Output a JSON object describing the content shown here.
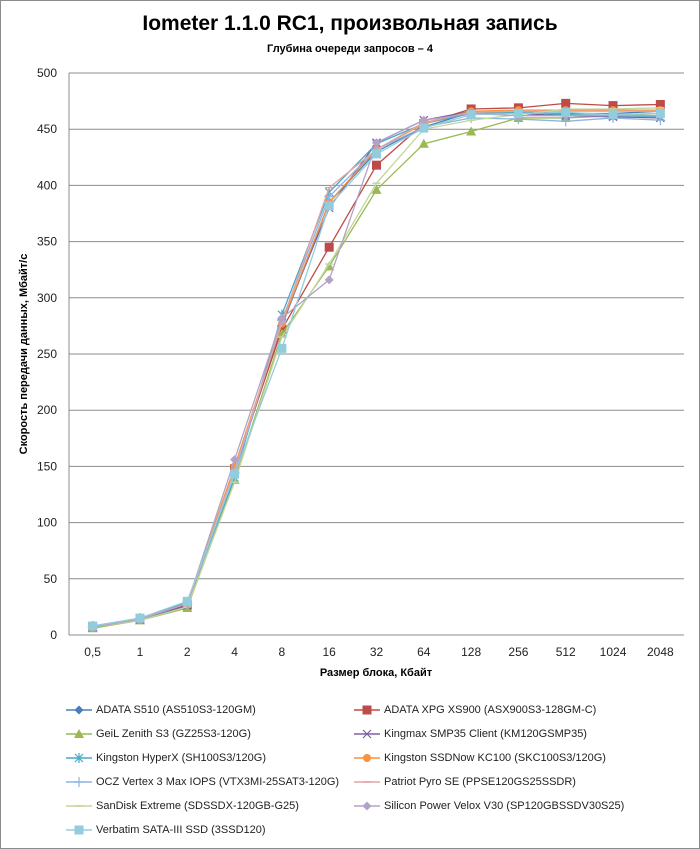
{
  "chart_data": {
    "type": "line",
    "title": "Iometer 1.1.0 RC1, произвольная запись",
    "subtitle": "Глубина очереди запросов – 4",
    "xlabel": "Размер блока, Кбайт",
    "ylabel": "Скорость передачи данных, Мбайт/с",
    "ylim": [
      0,
      500
    ],
    "yticks": [
      0,
      50,
      100,
      150,
      200,
      250,
      300,
      350,
      400,
      450,
      500
    ],
    "grid": true,
    "legend_position": "bottom",
    "categories": [
      "0,5",
      "1",
      "2",
      "4",
      "8",
      "16",
      "32",
      "64",
      "128",
      "256",
      "512",
      "1024",
      "2048"
    ],
    "series": [
      {
        "name": "ADATA S510 (AS510S3-120GM)",
        "color": "#4a7ebb",
        "marker": "diamond",
        "values": [
          7,
          14,
          27,
          145,
          275,
          385,
          430,
          452,
          465,
          466,
          464,
          464,
          466
        ]
      },
      {
        "name": "ADATA XPG XS900 (ASX900S3-128GM-C)",
        "color": "#be4b48",
        "marker": "square",
        "values": [
          7,
          14,
          27,
          148,
          272,
          345,
          418,
          455,
          468,
          469,
          473,
          471,
          472
        ]
      },
      {
        "name": "GeiL Zenith S3 (GZ25S3-120G)",
        "color": "#98b954",
        "marker": "triangle",
        "values": [
          6,
          13,
          24,
          138,
          268,
          328,
          396,
          437,
          448,
          460,
          460,
          462,
          464
        ]
      },
      {
        "name": "Kingmax SMP35 Client (KM120GSMP35)",
        "color": "#7d60a0",
        "marker": "x",
        "values": [
          7,
          14,
          26,
          146,
          278,
          380,
          438,
          458,
          466,
          464,
          462,
          461,
          460
        ]
      },
      {
        "name": "Kingston HyperX (SH100S3/120G)",
        "color": "#46aac5",
        "marker": "star",
        "values": [
          8,
          15,
          29,
          140,
          285,
          394,
          437,
          455,
          464,
          465,
          463,
          462,
          461
        ]
      },
      {
        "name": "Kingston SSDNow KC100 (SKC100S3/120G)",
        "color": "#f69240",
        "marker": "circle",
        "values": [
          7,
          14,
          28,
          150,
          277,
          385,
          432,
          455,
          466,
          467,
          467,
          467,
          467
        ]
      },
      {
        "name": "OCZ Vertex 3 Max IOPS (VTX3MI-25SAT3-120G)",
        "color": "#8eb4e3",
        "marker": "plus",
        "values": [
          7,
          14,
          28,
          144,
          280,
          390,
          432,
          452,
          460,
          459,
          457,
          460,
          458
        ]
      },
      {
        "name": "Patriot Pyro SE (PPSE120GS25SSDR)",
        "color": "#e6a3a2",
        "marker": "dash",
        "values": [
          7,
          14,
          28,
          147,
          278,
          398,
          432,
          456,
          465,
          466,
          466,
          466,
          466
        ]
      },
      {
        "name": "SanDisk Extreme (SDSSDX-120GB-G25)",
        "color": "#c3d69b",
        "marker": "dash",
        "values": [
          7,
          13,
          25,
          136,
          265,
          330,
          402,
          450,
          458,
          463,
          468,
          468,
          469
        ]
      },
      {
        "name": "Silicon Power Velox V30 (SP120GBSSDV30S25)",
        "color": "#b3a2c7",
        "marker": "diamond",
        "values": [
          7,
          14,
          28,
          156,
          282,
          316,
          438,
          458,
          464,
          462,
          462,
          462,
          462
        ]
      },
      {
        "name": "Verbatim SATA-III SSD (3SSD120)",
        "color": "#93cddd",
        "marker": "square",
        "values": [
          8,
          15,
          30,
          143,
          255,
          382,
          428,
          451,
          463,
          464,
          465,
          463,
          464
        ]
      }
    ]
  }
}
